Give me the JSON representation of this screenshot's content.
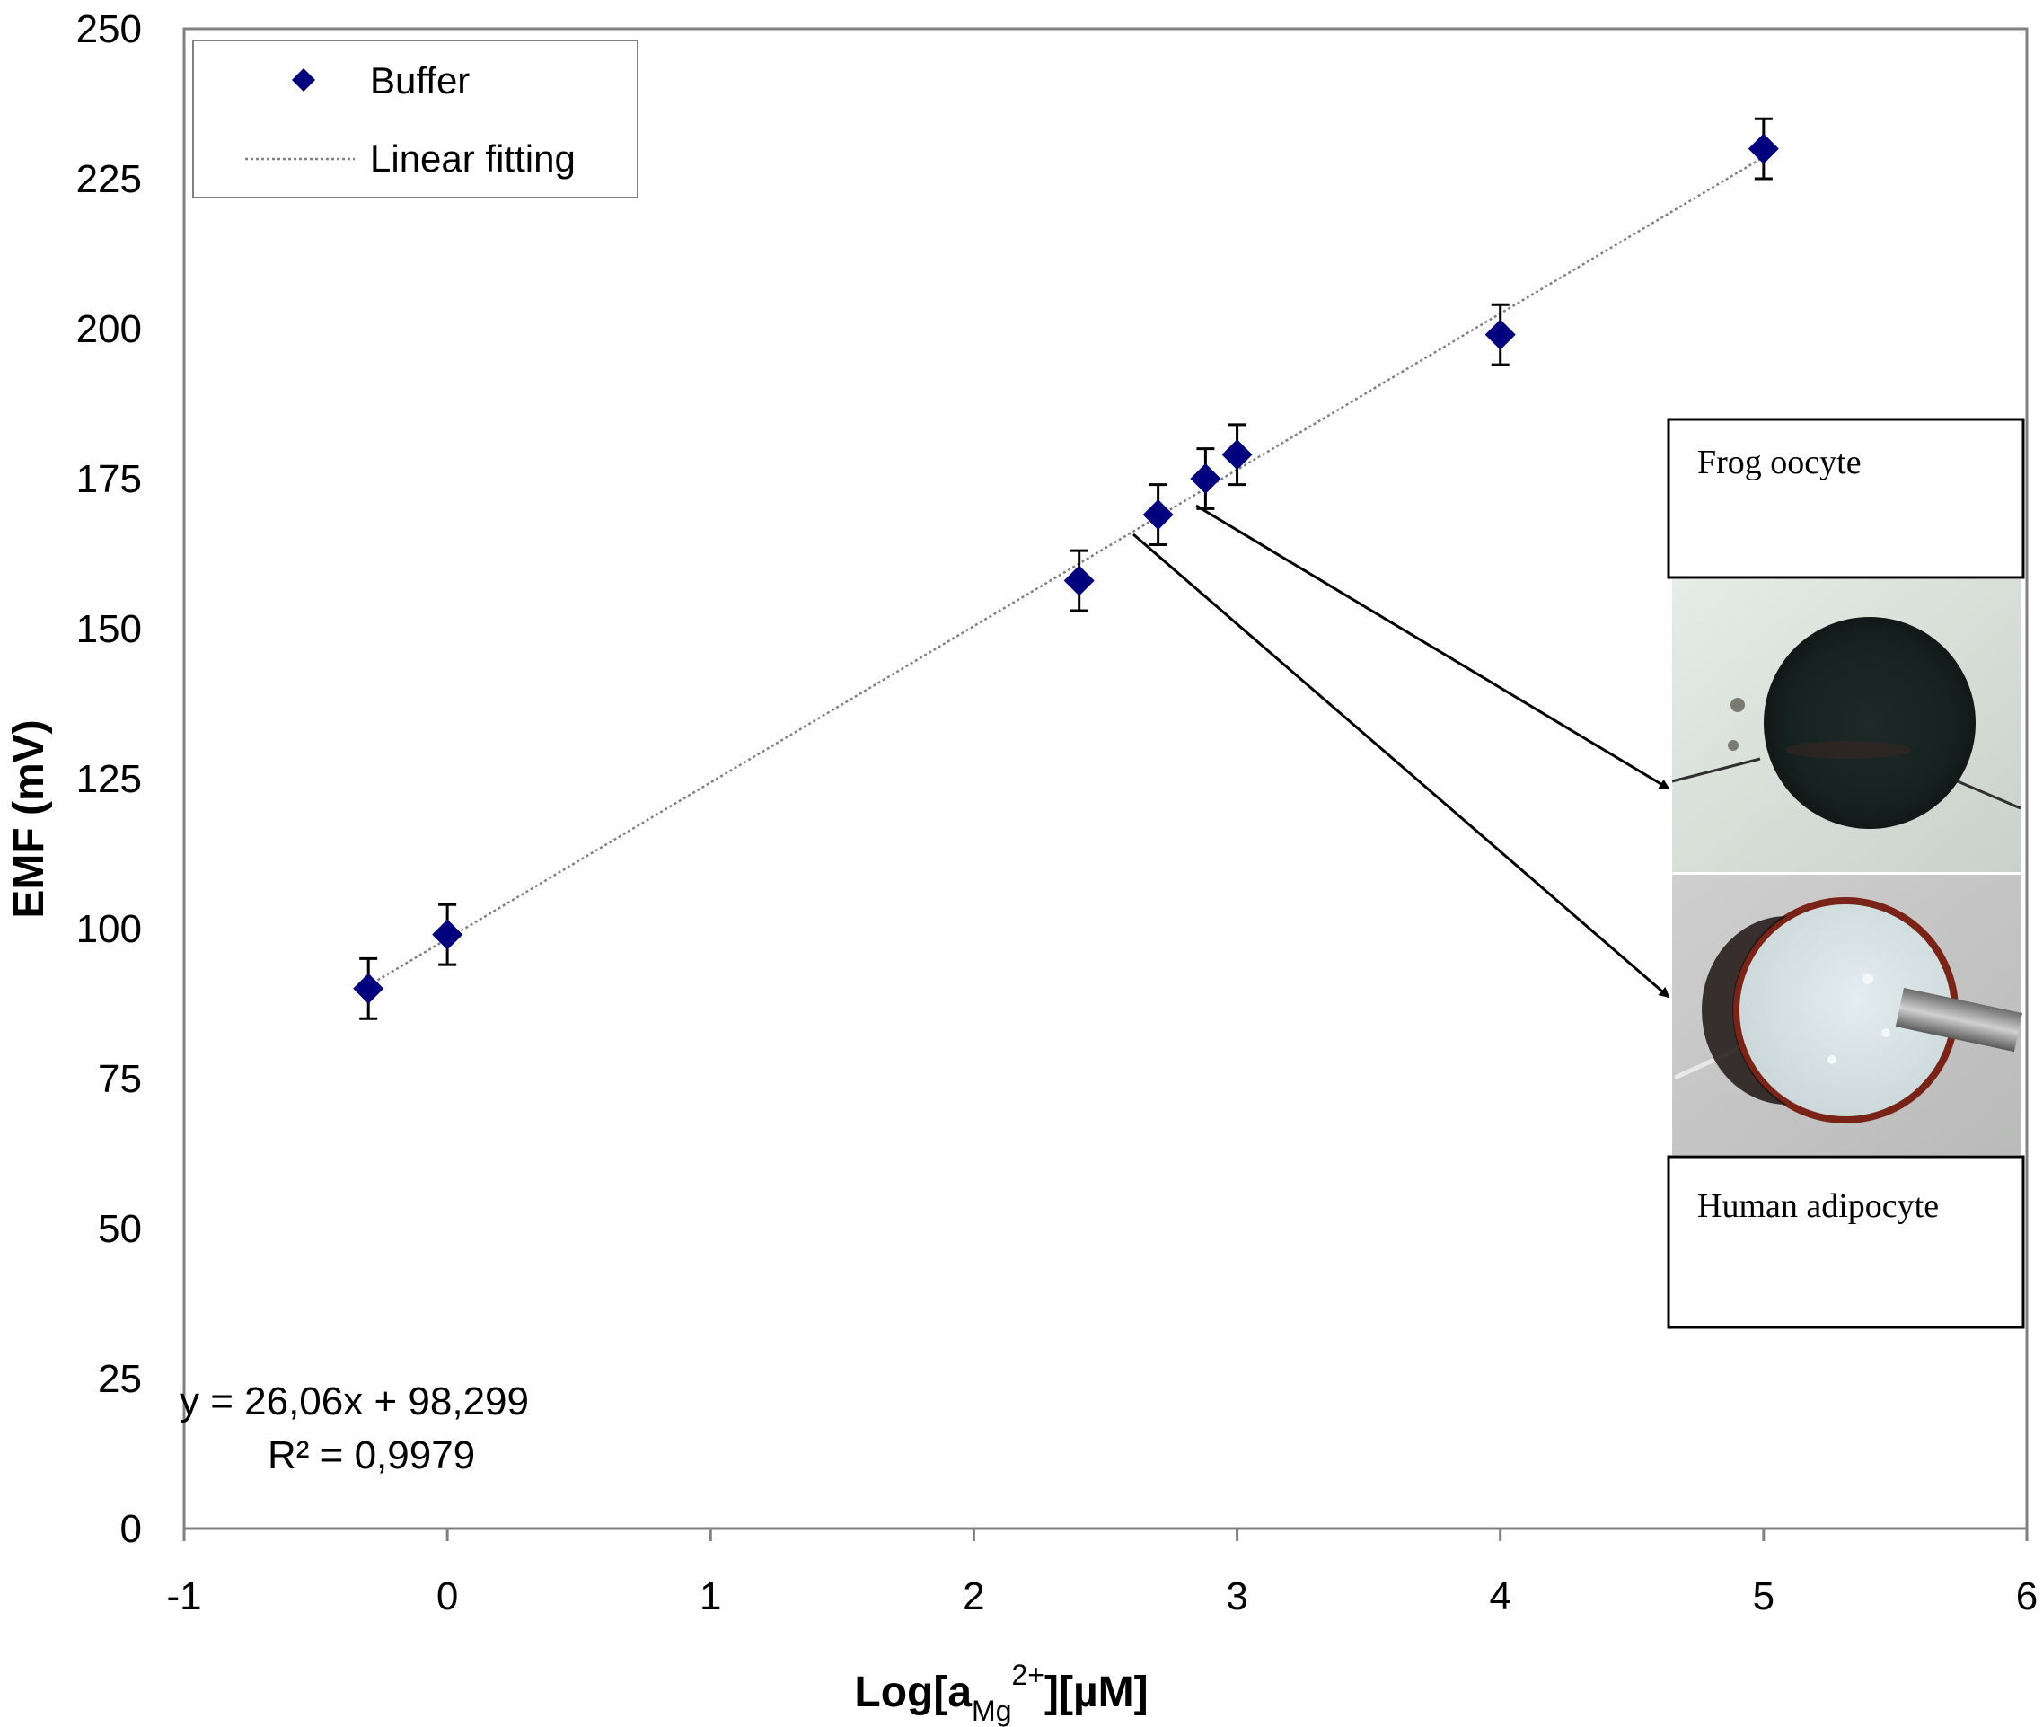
{
  "chart_data": {
    "type": "scatter",
    "xlabel_main": "Log[a",
    "xlabel_sub": "Mg",
    "xlabel_sup": "2+",
    "xlabel_tail": "][µM]",
    "ylabel": "EMF (mV)",
    "xlim": [
      -1,
      6
    ],
    "ylim": [
      0,
      250
    ],
    "x_ticks": [
      -1,
      0,
      1,
      2,
      3,
      4,
      5,
      6
    ],
    "y_ticks": [
      0,
      25,
      50,
      75,
      100,
      125,
      150,
      175,
      200,
      225,
      250
    ],
    "grid": false,
    "legend_position": "top-left",
    "series": [
      {
        "name": "Buffer",
        "marker": "diamond",
        "color": "#00007f",
        "points": [
          {
            "x": -0.3,
            "y": 90,
            "err": 5
          },
          {
            "x": 0,
            "y": 99,
            "err": 5
          },
          {
            "x": 2.4,
            "y": 158,
            "err": 5
          },
          {
            "x": 2.7,
            "y": 169,
            "err": 5
          },
          {
            "x": 2.88,
            "y": 175,
            "err": 5
          },
          {
            "x": 3.0,
            "y": 179,
            "err": 5
          },
          {
            "x": 4.0,
            "y": 199,
            "err": 5
          },
          {
            "x": 5.0,
            "y": 230,
            "err": 5
          }
        ]
      },
      {
        "name": "Linear fitting",
        "style": "dotted",
        "color": "#808080",
        "slope": 26.06,
        "intercept": 98.299,
        "x_range": [
          -0.3,
          5.0
        ]
      }
    ],
    "annotations": {
      "equation": "y = 26,06x  + 98,299",
      "r_squared": "R² = 0,9979",
      "frog_label": "Frog oocyte",
      "human_label": "Human adipocyte"
    }
  }
}
